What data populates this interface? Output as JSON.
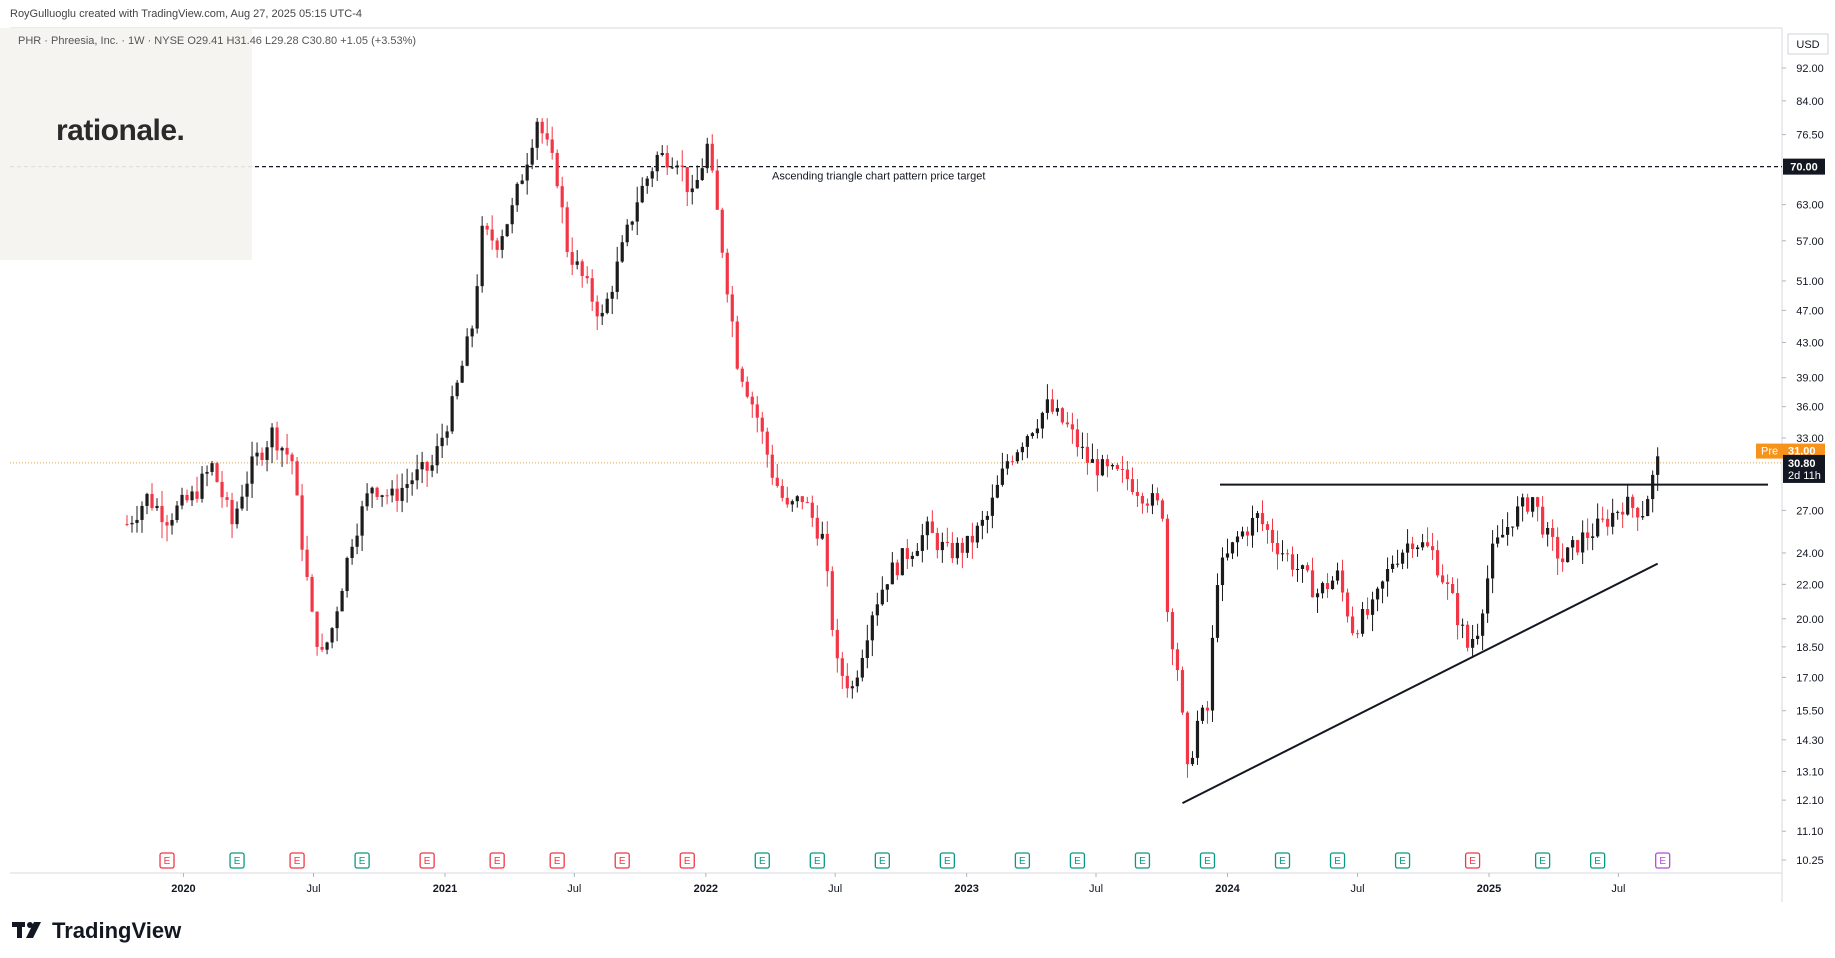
{
  "header": {
    "credit": "RoyGulluoglu created with TradingView.com, Aug 27, 2025 05:15 UTC-4",
    "symbol_line": "PHR · Phreesia, Inc. · 1W · NYSE  O29.41  H31.46  L29.28  C30.80  +1.05 (+3.53%)"
  },
  "logo": {
    "text": "rationale."
  },
  "footer": {
    "brand": "TradingView"
  },
  "colors": {
    "up": "#26a69a",
    "down": "#ef5350",
    "up_body": "#1b1b1b",
    "down_body": "#f23645",
    "earn_green": "#089981",
    "earn_red": "#f23645"
  },
  "chart_data": {
    "type": "candlestick",
    "currency": "USD",
    "scale": "log",
    "ylim": [
      10.25,
      92.0
    ],
    "y_ticks": [
      "92.00",
      "84.00",
      "76.50",
      "70.00",
      "63.00",
      "57.00",
      "51.00",
      "47.00",
      "43.00",
      "39.00",
      "36.00",
      "33.00",
      "30.80",
      "27.00",
      "24.00",
      "22.00",
      "20.00",
      "18.50",
      "17.00",
      "15.50",
      "14.30",
      "13.10",
      "12.10",
      "11.10",
      "10.25"
    ],
    "x_ticks": [
      "2020",
      "Jul",
      "2021",
      "Jul",
      "2022",
      "Jul",
      "2023",
      "Jul",
      "2024",
      "Jul",
      "2025",
      "Jul"
    ],
    "last_price": {
      "label": "30.80",
      "value": 30.8,
      "countdown": "2d 11h"
    },
    "premarket": {
      "label": "Pre",
      "price_label": "31.00",
      "value": 31.0
    },
    "target_line": {
      "value": 70.0,
      "label": "70.00",
      "annotation": "Ascending triangle chart pattern price target"
    },
    "resistance_value": 29.0,
    "support_line": {
      "from": {
        "date": "2023-10-30",
        "value": 12.0
      },
      "to": {
        "date": "2025-08-25",
        "value": 23.3
      }
    },
    "earnings_markers": [
      {
        "date": "2019-12-09",
        "type": "E",
        "result": "miss"
      },
      {
        "date": "2020-03-16",
        "type": "E",
        "result": "beat"
      },
      {
        "date": "2020-06-08",
        "type": "E",
        "result": "miss"
      },
      {
        "date": "2020-09-07",
        "type": "E",
        "result": "beat"
      },
      {
        "date": "2020-12-07",
        "type": "E",
        "result": "miss"
      },
      {
        "date": "2021-03-15",
        "type": "E",
        "result": "miss"
      },
      {
        "date": "2021-06-07",
        "type": "E",
        "result": "miss"
      },
      {
        "date": "2021-09-06",
        "type": "E",
        "result": "miss"
      },
      {
        "date": "2021-12-06",
        "type": "E",
        "result": "miss"
      },
      {
        "date": "2022-03-21",
        "type": "E",
        "result": "beat"
      },
      {
        "date": "2022-06-06",
        "type": "E",
        "result": "beat"
      },
      {
        "date": "2022-09-05",
        "type": "E",
        "result": "beat"
      },
      {
        "date": "2022-12-05",
        "type": "E",
        "result": "beat"
      },
      {
        "date": "2023-03-20",
        "type": "E",
        "result": "beat"
      },
      {
        "date": "2023-06-05",
        "type": "E",
        "result": "beat"
      },
      {
        "date": "2023-09-04",
        "type": "E",
        "result": "beat"
      },
      {
        "date": "2023-12-04",
        "type": "E",
        "result": "beat"
      },
      {
        "date": "2024-03-18",
        "type": "E",
        "result": "beat"
      },
      {
        "date": "2024-06-03",
        "type": "E",
        "result": "beat"
      },
      {
        "date": "2024-09-02",
        "type": "E",
        "result": "beat"
      },
      {
        "date": "2024-12-09",
        "type": "E",
        "result": "miss"
      },
      {
        "date": "2025-03-17",
        "type": "E",
        "result": "beat"
      },
      {
        "date": "2025-06-02",
        "type": "E",
        "result": "beat"
      },
      {
        "date": "2025-09-01",
        "type": "E",
        "result": "upcoming"
      }
    ],
    "series": [
      {
        "name": "PHR",
        "interval": "1W",
        "closes": [
          {
            "date": "2019-10-14",
            "value": 26.0
          },
          {
            "date": "2019-11-11",
            "value": 28.0
          },
          {
            "date": "2019-12-09",
            "value": 26.5
          },
          {
            "date": "2020-01-13",
            "value": 28.0
          },
          {
            "date": "2020-02-10",
            "value": 30.5
          },
          {
            "date": "2020-03-09",
            "value": 26.0
          },
          {
            "date": "2020-03-23",
            "value": 28.5
          },
          {
            "date": "2020-04-06",
            "value": 30.5
          },
          {
            "date": "2020-05-04",
            "value": 33.5
          },
          {
            "date": "2020-06-01",
            "value": 31.0
          },
          {
            "date": "2020-06-08",
            "value": 27.5
          },
          {
            "date": "2020-06-29",
            "value": 20.0
          },
          {
            "date": "2020-07-13",
            "value": 18.0
          },
          {
            "date": "2020-07-27",
            "value": 19.5
          },
          {
            "date": "2020-08-24",
            "value": 25.0
          },
          {
            "date": "2020-09-21",
            "value": 29.0
          },
          {
            "date": "2020-10-19",
            "value": 28.0
          },
          {
            "date": "2020-11-16",
            "value": 29.5
          },
          {
            "date": "2020-12-14",
            "value": 30.5
          },
          {
            "date": "2021-01-11",
            "value": 36.0
          },
          {
            "date": "2021-02-08",
            "value": 45.0
          },
          {
            "date": "2021-02-22",
            "value": 58.0
          },
          {
            "date": "2021-03-15",
            "value": 57.0
          },
          {
            "date": "2021-04-05",
            "value": 62.0
          },
          {
            "date": "2021-04-26",
            "value": 72.0
          },
          {
            "date": "2021-05-10",
            "value": 80.0
          },
          {
            "date": "2021-06-07",
            "value": 68.0
          },
          {
            "date": "2021-06-21",
            "value": 56.0
          },
          {
            "date": "2021-07-19",
            "value": 50.0
          },
          {
            "date": "2021-08-09",
            "value": 46.0
          },
          {
            "date": "2021-08-30",
            "value": 53.0
          },
          {
            "date": "2021-09-27",
            "value": 64.0
          },
          {
            "date": "2021-10-25",
            "value": 72.0
          },
          {
            "date": "2021-11-22",
            "value": 72.0
          },
          {
            "date": "2021-12-13",
            "value": 64.0
          },
          {
            "date": "2022-01-03",
            "value": 74.0
          },
          {
            "date": "2022-01-24",
            "value": 56.0
          },
          {
            "date": "2022-02-14",
            "value": 41.0
          },
          {
            "date": "2022-03-14",
            "value": 35.0
          },
          {
            "date": "2022-04-04",
            "value": 30.0
          },
          {
            "date": "2022-04-25",
            "value": 27.0
          },
          {
            "date": "2022-05-16",
            "value": 28.0
          },
          {
            "date": "2022-06-13",
            "value": 25.0
          },
          {
            "date": "2022-07-04",
            "value": 17.5
          },
          {
            "date": "2022-07-25",
            "value": 16.5
          },
          {
            "date": "2022-08-22",
            "value": 20.5
          },
          {
            "date": "2022-09-12",
            "value": 22.5
          },
          {
            "date": "2022-10-10",
            "value": 24.0
          },
          {
            "date": "2022-11-07",
            "value": 25.5
          },
          {
            "date": "2022-12-05",
            "value": 24.0
          },
          {
            "date": "2023-01-02",
            "value": 24.5
          },
          {
            "date": "2023-01-30",
            "value": 26.5
          },
          {
            "date": "2023-02-27",
            "value": 31.0
          },
          {
            "date": "2023-03-27",
            "value": 33.5
          },
          {
            "date": "2023-04-24",
            "value": 36.0
          },
          {
            "date": "2023-05-22",
            "value": 34.0
          },
          {
            "date": "2023-06-19",
            "value": 31.0
          },
          {
            "date": "2023-07-17",
            "value": 30.0
          },
          {
            "date": "2023-08-14",
            "value": 29.5
          },
          {
            "date": "2023-09-11",
            "value": 28.0
          },
          {
            "date": "2023-10-02",
            "value": 27.0
          },
          {
            "date": "2023-10-09",
            "value": 20.5
          },
          {
            "date": "2023-10-23",
            "value": 17.5
          },
          {
            "date": "2023-11-06",
            "value": 13.0
          },
          {
            "date": "2023-11-20",
            "value": 15.0
          },
          {
            "date": "2023-12-04",
            "value": 15.5
          },
          {
            "date": "2023-12-18",
            "value": 22.5
          },
          {
            "date": "2024-01-15",
            "value": 25.0
          },
          {
            "date": "2024-02-12",
            "value": 26.5
          },
          {
            "date": "2024-03-11",
            "value": 24.5
          },
          {
            "date": "2024-04-08",
            "value": 23.0
          },
          {
            "date": "2024-05-06",
            "value": 21.5
          },
          {
            "date": "2024-06-03",
            "value": 22.5
          },
          {
            "date": "2024-06-24",
            "value": 19.5
          },
          {
            "date": "2024-07-22",
            "value": 20.5
          },
          {
            "date": "2024-08-19",
            "value": 23.5
          },
          {
            "date": "2024-09-16",
            "value": 25.0
          },
          {
            "date": "2024-10-14",
            "value": 24.0
          },
          {
            "date": "2024-11-11",
            "value": 21.0
          },
          {
            "date": "2024-12-02",
            "value": 18.5
          },
          {
            "date": "2024-12-16",
            "value": 19.5
          },
          {
            "date": "2025-01-06",
            "value": 24.0
          },
          {
            "date": "2025-02-03",
            "value": 26.5
          },
          {
            "date": "2025-03-03",
            "value": 28.0
          },
          {
            "date": "2025-03-24",
            "value": 25.0
          },
          {
            "date": "2025-04-14",
            "value": 23.5
          },
          {
            "date": "2025-05-12",
            "value": 25.0
          },
          {
            "date": "2025-06-09",
            "value": 26.0
          },
          {
            "date": "2025-07-07",
            "value": 27.5
          },
          {
            "date": "2025-08-04",
            "value": 27.0
          },
          {
            "date": "2025-08-25",
            "value": 30.8
          }
        ]
      }
    ]
  }
}
